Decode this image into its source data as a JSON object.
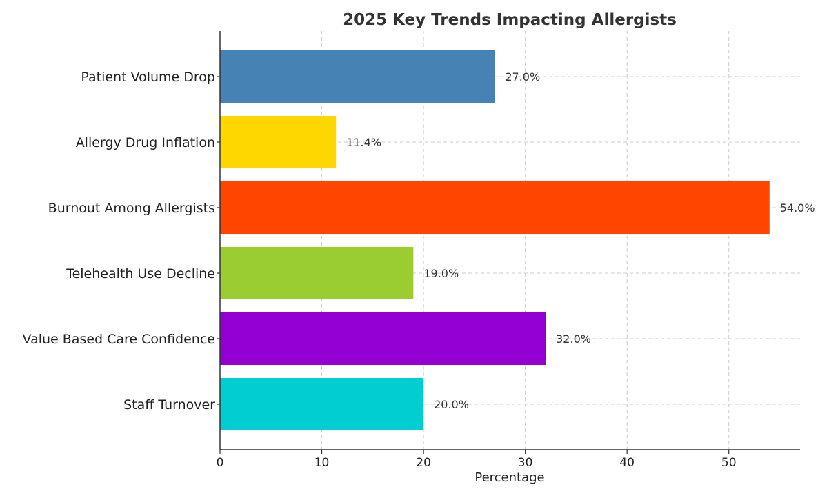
{
  "chart_data": {
    "type": "bar",
    "orientation": "horizontal",
    "title": "2025 Key Trends Impacting Allergists",
    "xlabel": "Percentage",
    "ylabel": "",
    "xlim": [
      0,
      57
    ],
    "x_ticks": [
      0,
      10,
      20,
      30,
      40,
      50
    ],
    "x_tick_labels": [
      "0",
      "10",
      "20",
      "30",
      "40",
      "50"
    ],
    "grid": true,
    "categories": [
      "Patient Volume Drop",
      "Allergy Drug Inflation",
      "Burnout Among Allergists",
      "Telehealth Use Decline",
      "Value Based Care Confidence",
      "Staff Turnover"
    ],
    "values": [
      27.0,
      11.4,
      54.0,
      19.0,
      32.0,
      20.0
    ],
    "value_labels": [
      "27.0%",
      "11.4%",
      "54.0%",
      "19.0%",
      "32.0%",
      "20.0%"
    ],
    "colors": [
      "#4682b4",
      "#ffd700",
      "#ff4500",
      "#9acd32",
      "#9400d3",
      "#00ced1"
    ]
  }
}
